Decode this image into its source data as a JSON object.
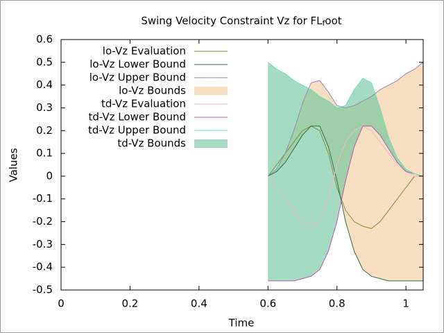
{
  "chart_data": {
    "type": "line",
    "title": "Swing Velocity Constraint Vz for FL",
    "title_subscript": "f",
    "title_suffix": "oot",
    "xlabel": "Time",
    "ylabel": "Values",
    "xlim": [
      0,
      1.05
    ],
    "ylim": [
      -0.5,
      0.6
    ],
    "xticks": [
      0,
      0.2,
      0.4,
      0.6,
      0.8,
      1
    ],
    "yticks": [
      -0.5,
      -0.4,
      -0.3,
      -0.2,
      -0.1,
      0,
      0.1,
      0.2,
      0.3,
      0.4,
      0.5,
      0.6
    ],
    "legend": "top-left",
    "x": [
      0.6,
      0.625,
      0.65,
      0.675,
      0.7,
      0.725,
      0.75,
      0.775,
      0.8,
      0.825,
      0.85,
      0.875,
      0.9,
      0.925,
      0.95,
      0.975,
      1.0,
      1.025,
      1.05
    ],
    "series": [
      {
        "name": "lo-Vz Evaluation",
        "color": "#8a8a3a",
        "values": [
          0,
          0.05,
          0.1,
          0.15,
          0.2,
          0.22,
          0.2,
          0.1,
          -0.05,
          -0.15,
          -0.2,
          -0.22,
          -0.23,
          -0.2,
          -0.15,
          -0.1,
          -0.05,
          0,
          0
        ]
      },
      {
        "name": "lo-Vz Lower Bound",
        "color": "#2e6b4a",
        "values": [
          0,
          0.02,
          0.06,
          0.12,
          0.18,
          0.22,
          0.22,
          0.13,
          -0.02,
          -0.2,
          -0.33,
          -0.41,
          -0.44,
          -0.45,
          -0.46,
          -0.46,
          -0.46,
          -0.46,
          -0.46
        ]
      },
      {
        "name": "lo-Vz Upper Bound",
        "color": "#9a8ab5",
        "values": [
          0,
          0.03,
          0.1,
          0.2,
          0.32,
          0.41,
          0.42,
          0.37,
          0.31,
          0.3,
          0.31,
          0.33,
          0.35,
          0.38,
          0.4,
          0.42,
          0.45,
          0.47,
          0.5
        ]
      },
      {
        "name": "lo-Vz Bounds",
        "color": "#f5dfc0",
        "fill": true,
        "lower": [
          0,
          0.02,
          0.06,
          0.12,
          0.18,
          0.22,
          0.22,
          0.13,
          -0.02,
          -0.2,
          -0.33,
          -0.41,
          -0.44,
          -0.45,
          -0.46,
          -0.46,
          -0.46,
          -0.46,
          -0.46
        ],
        "upper": [
          0,
          0.03,
          0.1,
          0.2,
          0.32,
          0.41,
          0.42,
          0.37,
          0.31,
          0.3,
          0.31,
          0.33,
          0.35,
          0.38,
          0.4,
          0.42,
          0.45,
          0.47,
          0.5
        ]
      },
      {
        "name": "td-Vz Evaluation",
        "color": "#f2b8c8",
        "values": [
          0,
          -0.05,
          -0.1,
          -0.15,
          -0.2,
          -0.22,
          -0.2,
          -0.1,
          0.05,
          0.15,
          0.2,
          0.22,
          0.2,
          0.15,
          0.1,
          0.05,
          0.02,
          0,
          0
        ]
      },
      {
        "name": "td-Vz Lower Bound",
        "color": "#b060b0",
        "values": [
          -0.46,
          -0.46,
          -0.46,
          -0.46,
          -0.45,
          -0.44,
          -0.41,
          -0.33,
          -0.2,
          -0.02,
          0.13,
          0.22,
          0.22,
          0.18,
          0.12,
          0.06,
          0.02,
          0.01,
          0
        ]
      },
      {
        "name": "td-Vz Upper Bound",
        "color": "#70e0c0",
        "values": [
          0.5,
          0.47,
          0.45,
          0.42,
          0.4,
          0.38,
          0.35,
          0.33,
          0.3,
          0.31,
          0.38,
          0.43,
          0.41,
          0.3,
          0.17,
          0.08,
          0.03,
          0.01,
          0
        ]
      },
      {
        "name": "td-Vz Bounds",
        "color": "#66c499",
        "fill": true,
        "lower": [
          -0.46,
          -0.46,
          -0.46,
          -0.46,
          -0.45,
          -0.44,
          -0.41,
          -0.33,
          -0.2,
          -0.02,
          0.13,
          0.22,
          0.22,
          0.18,
          0.12,
          0.06,
          0.02,
          0.01,
          0
        ],
        "upper": [
          0.5,
          0.47,
          0.45,
          0.42,
          0.4,
          0.38,
          0.35,
          0.33,
          0.3,
          0.31,
          0.38,
          0.43,
          0.41,
          0.3,
          0.17,
          0.08,
          0.03,
          0.01,
          0
        ]
      }
    ]
  }
}
